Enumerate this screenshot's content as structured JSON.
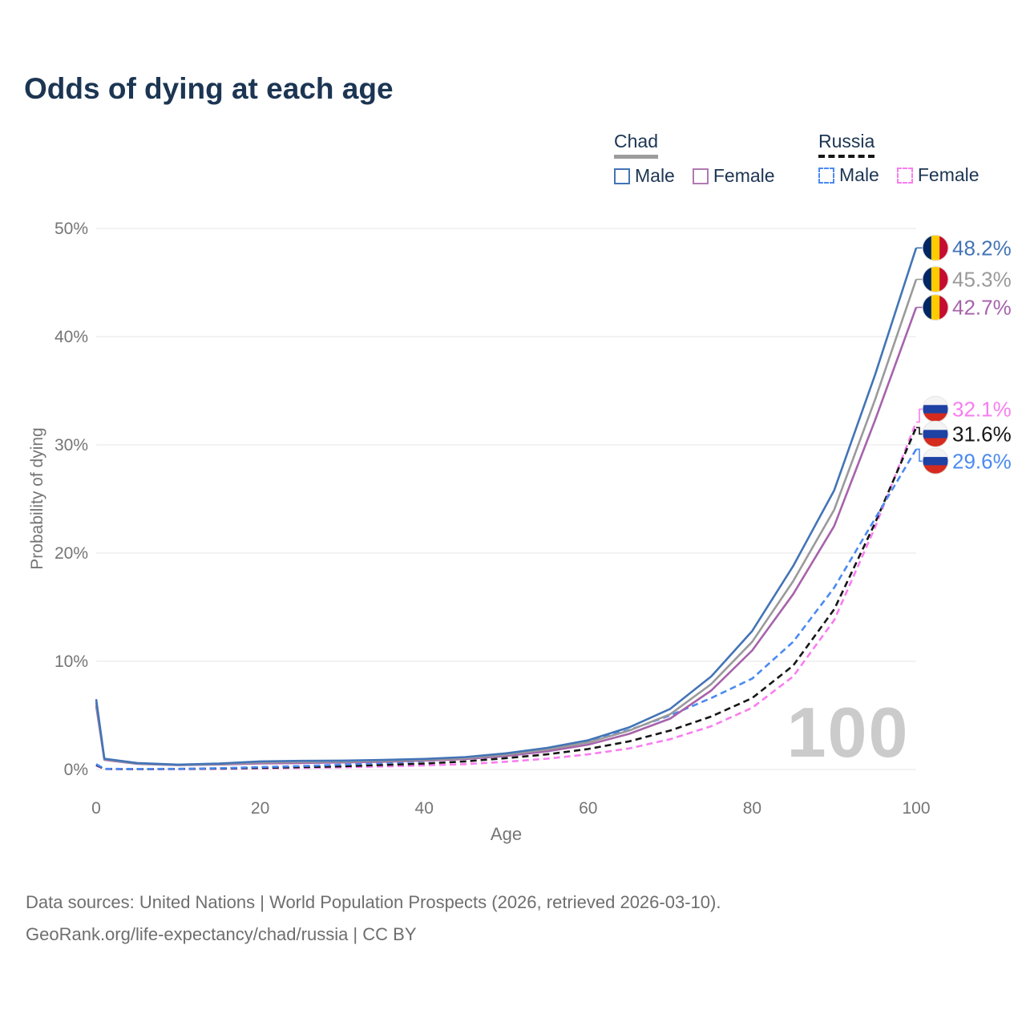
{
  "title": "Odds of dying at each age",
  "watermark": "100",
  "legend": {
    "groups": [
      {
        "label": "Chad",
        "line_style": "solid",
        "underline_color": "#9c9c9c",
        "items": [
          {
            "label": "Male",
            "color": "#4374b6",
            "dashed": false
          },
          {
            "label": "Female",
            "color": "#b07ab2",
            "dashed": false
          }
        ]
      },
      {
        "label": "Russia",
        "line_style": "dashed",
        "underline_color": "#161616",
        "items": [
          {
            "label": "Male",
            "color": "#4b8af2",
            "dashed": true
          },
          {
            "label": "Female",
            "color": "#f87df0",
            "dashed": true
          }
        ]
      }
    ]
  },
  "footer": {
    "line1": "Data sources: United Nations | World Population Prospects (2026, retrieved 2026-03-10).",
    "line2": "GeoRank.org/life-expectancy/chad/russia | CC BY"
  },
  "chart_data": {
    "type": "line",
    "title": "Odds of dying at each age",
    "xlabel": "Age",
    "ylabel": "Probability of dying",
    "xlim": [
      0,
      100
    ],
    "ylim": [
      0,
      50
    ],
    "grid": "horizontal",
    "legend_position": "top-right",
    "x_ticks": [
      {
        "value": 0,
        "label": "0"
      },
      {
        "value": 20,
        "label": "20"
      },
      {
        "value": 40,
        "label": "40"
      },
      {
        "value": 60,
        "label": "60"
      },
      {
        "value": 80,
        "label": "80"
      },
      {
        "value": 100,
        "label": "100"
      }
    ],
    "y_ticks": [
      {
        "value": 0,
        "label": "0%"
      },
      {
        "value": 10,
        "label": "10%"
      },
      {
        "value": 20,
        "label": "20%"
      },
      {
        "value": 30,
        "label": "30%"
      },
      {
        "value": 40,
        "label": "40%"
      },
      {
        "value": 50,
        "label": "50%"
      }
    ],
    "ages": [
      0,
      1,
      5,
      10,
      15,
      20,
      25,
      30,
      35,
      40,
      45,
      50,
      55,
      60,
      65,
      70,
      75,
      80,
      85,
      90,
      95,
      100
    ],
    "series": [
      {
        "id": "russia-female",
        "name": "Russia Female",
        "color": "#f87df0",
        "dash": true,
        "flag": "russia",
        "end_label": "32.1%",
        "end_value": 32.1,
        "label_at": 33.3,
        "values": [
          0.38,
          0.04,
          0.03,
          0.04,
          0.06,
          0.1,
          0.14,
          0.2,
          0.28,
          0.38,
          0.5,
          0.72,
          1.0,
          1.4,
          1.95,
          2.8,
          4.0,
          5.7,
          8.6,
          13.8,
          22.4,
          32.1
        ]
      },
      {
        "id": "russia-all",
        "name": "Russia",
        "color": "#161616",
        "dash": true,
        "flag": "russia",
        "end_label": "31.6%",
        "end_value": 31.6,
        "label_at": 31.0,
        "values": [
          0.42,
          0.05,
          0.04,
          0.05,
          0.09,
          0.15,
          0.22,
          0.3,
          0.42,
          0.55,
          0.75,
          1.05,
          1.4,
          1.9,
          2.6,
          3.6,
          4.9,
          6.6,
          9.6,
          14.8,
          22.8,
          31.6
        ]
      },
      {
        "id": "russia-male",
        "name": "Russia Male",
        "color": "#4b8af2",
        "dash": true,
        "flag": "russia",
        "end_label": "29.6%",
        "end_value": 29.6,
        "label_at": 28.5,
        "values": [
          0.5,
          0.06,
          0.05,
          0.06,
          0.12,
          0.22,
          0.32,
          0.45,
          0.6,
          0.78,
          1.05,
          1.45,
          1.95,
          2.65,
          3.65,
          5.0,
          6.6,
          8.4,
          11.8,
          16.8,
          23.2,
          29.6
        ]
      },
      {
        "id": "chad-female",
        "name": "Chad Female",
        "color": "#a763ab",
        "dash": false,
        "flag": "chad",
        "end_label": "42.7%",
        "end_value": 42.7,
        "label_at": 42.7,
        "values": [
          5.9,
          0.9,
          0.52,
          0.4,
          0.46,
          0.56,
          0.6,
          0.65,
          0.72,
          0.82,
          0.97,
          1.25,
          1.68,
          2.3,
          3.3,
          4.7,
          7.3,
          11.0,
          16.2,
          22.5,
          32.3,
          42.7
        ]
      },
      {
        "id": "chad-all",
        "name": "Chad",
        "color": "#9a9a9a",
        "dash": false,
        "flag": "chad",
        "end_label": "45.3%",
        "end_value": 45.3,
        "label_at": 45.3,
        "values": [
          6.2,
          0.95,
          0.55,
          0.42,
          0.5,
          0.65,
          0.7,
          0.73,
          0.8,
          0.9,
          1.05,
          1.38,
          1.85,
          2.5,
          3.6,
          5.1,
          7.9,
          11.8,
          17.4,
          24.0,
          34.2,
          45.3
        ]
      },
      {
        "id": "chad-male",
        "name": "Chad Male",
        "color": "#4374b6",
        "dash": false,
        "flag": "chad",
        "end_label": "48.2%",
        "end_value": 48.2,
        "label_at": 48.2,
        "values": [
          6.5,
          1.0,
          0.6,
          0.45,
          0.55,
          0.75,
          0.8,
          0.82,
          0.88,
          0.98,
          1.15,
          1.5,
          2.0,
          2.7,
          3.9,
          5.6,
          8.6,
          12.8,
          18.8,
          25.8,
          36.5,
          48.2
        ]
      }
    ],
    "flags": {
      "chad": {
        "orientation": "vertical",
        "colors": [
          "#002664",
          "#fecb00",
          "#c60c30"
        ]
      },
      "russia": {
        "orientation": "horizontal",
        "colors": [
          "#f4f4f4",
          "#1e41a4",
          "#d52b1e"
        ]
      }
    }
  }
}
